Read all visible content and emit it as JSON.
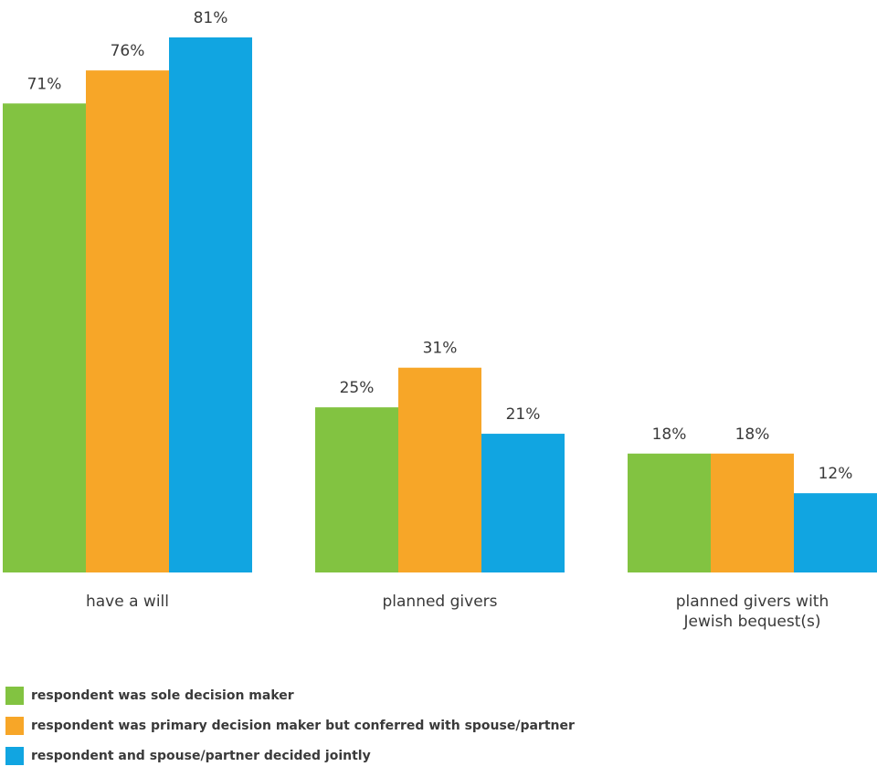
{
  "chart_data": {
    "type": "bar",
    "title": "",
    "xlabel": "",
    "ylabel": "",
    "ylim": [
      0,
      100
    ],
    "grid": false,
    "legend_position": "bottom-left",
    "categories": [
      [
        "have a will"
      ],
      [
        "planned givers"
      ],
      [
        "planned givers with",
        "Jewish bequest(s)"
      ]
    ],
    "series": [
      {
        "name": "respondent was sole decision maker",
        "color": "#82c341",
        "values": [
          71,
          25,
          18
        ],
        "labels": [
          "71%",
          "25%",
          "18%"
        ]
      },
      {
        "name": "respondent was primary decision maker but conferred with spouse/partner",
        "color": "#f7a628",
        "values": [
          76,
          31,
          18
        ],
        "labels": [
          "76%",
          "31%",
          "18%"
        ]
      },
      {
        "name": "respondent and spouse/partner decided jointly",
        "color": "#11a5e1",
        "values": [
          81,
          21,
          12
        ],
        "labels": [
          "81%",
          "21%",
          "12%"
        ]
      }
    ]
  }
}
